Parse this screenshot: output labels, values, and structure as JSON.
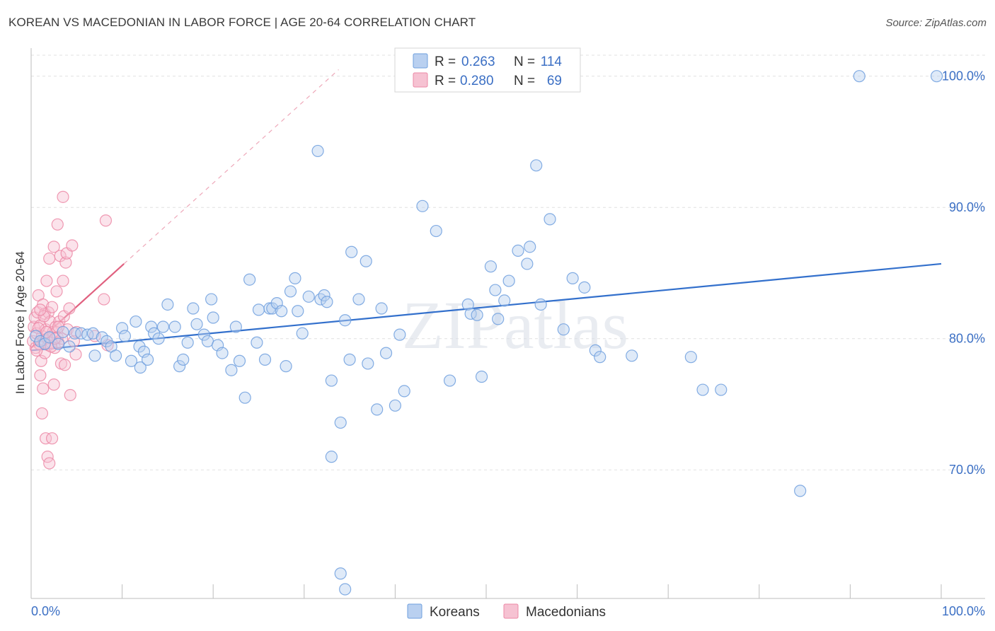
{
  "title": "KOREAN VS MACEDONIAN IN LABOR FORCE | AGE 20-64 CORRELATION CHART",
  "source": "Source: ZipAtlas.com",
  "watermark": "ZIPatlas",
  "colors": {
    "koreans": "#6f9fde",
    "koreans_fill": "#b9d0f0",
    "koreans_line": "#3370cc",
    "macedonians": "#ec88a6",
    "macedonians_fill": "#f6c2d2",
    "macedonians_line": "#e0607f",
    "axis_text": "#3b6fc4"
  },
  "legend": {
    "rows": [
      {
        "r_label": "R = ",
        "r_value": "0.263",
        "n_label": "N = ",
        "n_value": "114"
      },
      {
        "r_label": "R = ",
        "r_value": "0.280",
        "n_label": "N = ",
        "n_value": "69"
      }
    ]
  },
  "bottom_legend": [
    "Koreans",
    "Macedonians"
  ],
  "chart_data": {
    "type": "scatter",
    "title": "KOREAN VS MACEDONIAN IN LABOR FORCE | AGE 20-64 CORRELATION CHART",
    "xlabel": "",
    "ylabel": "In Labor Force | Age 20-64",
    "xlim": [
      0,
      100
    ],
    "ylim": [
      60.2,
      101.6
    ],
    "x_tick_labels": [
      "0.0%",
      "100.0%"
    ],
    "y_ticks": [
      70,
      80,
      90,
      100
    ],
    "y_tick_labels": [
      "70.0%",
      "80.0%",
      "90.0%",
      "100.0%"
    ],
    "grid": true,
    "legend_position": "top-center",
    "series": [
      {
        "name": "Koreans",
        "r": 0.263,
        "n": 114,
        "trend": {
          "x": [
            0,
            100
          ],
          "y": [
            79.1,
            85.7
          ]
        },
        "points": [
          [
            0.5,
            80.2
          ],
          [
            1.0,
            79.8
          ],
          [
            1.5,
            79.6
          ],
          [
            2.0,
            80.1
          ],
          [
            3.0,
            79.6
          ],
          [
            3.5,
            80.5
          ],
          [
            4.2,
            79.4
          ],
          [
            4.8,
            80.4
          ],
          [
            5.5,
            80.4
          ],
          [
            6.2,
            80.3
          ],
          [
            6.8,
            80.4
          ],
          [
            7.0,
            78.7
          ],
          [
            7.8,
            80.1
          ],
          [
            8.3,
            79.8
          ],
          [
            8.8,
            79.4
          ],
          [
            9.3,
            78.7
          ],
          [
            10.0,
            80.8
          ],
          [
            10.3,
            80.2
          ],
          [
            11.0,
            78.3
          ],
          [
            11.5,
            81.3
          ],
          [
            11.9,
            79.4
          ],
          [
            12.0,
            77.8
          ],
          [
            12.4,
            79.0
          ],
          [
            12.8,
            78.4
          ],
          [
            13.2,
            80.9
          ],
          [
            13.5,
            80.4
          ],
          [
            14.0,
            80.0
          ],
          [
            14.5,
            80.9
          ],
          [
            15.0,
            82.6
          ],
          [
            15.8,
            80.9
          ],
          [
            16.3,
            77.9
          ],
          [
            16.7,
            78.4
          ],
          [
            17.2,
            79.7
          ],
          [
            17.8,
            82.3
          ],
          [
            18.2,
            81.1
          ],
          [
            19.0,
            80.3
          ],
          [
            19.4,
            79.8
          ],
          [
            19.8,
            83.0
          ],
          [
            20.0,
            81.6
          ],
          [
            20.5,
            79.5
          ],
          [
            21.0,
            78.9
          ],
          [
            22.0,
            77.6
          ],
          [
            22.5,
            80.9
          ],
          [
            22.9,
            78.3
          ],
          [
            23.5,
            75.5
          ],
          [
            24.0,
            84.5
          ],
          [
            24.8,
            79.7
          ],
          [
            25.0,
            82.2
          ],
          [
            25.7,
            78.4
          ],
          [
            26.2,
            82.3
          ],
          [
            26.5,
            82.3
          ],
          [
            27.0,
            82.7
          ],
          [
            27.5,
            82.1
          ],
          [
            28.0,
            77.9
          ],
          [
            28.5,
            83.6
          ],
          [
            29.0,
            84.6
          ],
          [
            29.3,
            82.1
          ],
          [
            29.8,
            80.4
          ],
          [
            30.5,
            83.2
          ],
          [
            31.5,
            94.3
          ],
          [
            31.8,
            83.0
          ],
          [
            32.2,
            83.3
          ],
          [
            32.5,
            82.8
          ],
          [
            33.0,
            76.8
          ],
          [
            34.0,
            73.6
          ],
          [
            34.5,
            81.4
          ],
          [
            35.0,
            78.4
          ],
          [
            35.2,
            86.6
          ],
          [
            36.0,
            83.0
          ],
          [
            36.8,
            85.9
          ],
          [
            37.0,
            78.1
          ],
          [
            38.0,
            74.6
          ],
          [
            38.5,
            82.3
          ],
          [
            39.0,
            78.9
          ],
          [
            40.0,
            74.9
          ],
          [
            40.5,
            80.3
          ],
          [
            41.0,
            76.0
          ],
          [
            43.0,
            90.1
          ],
          [
            44.5,
            88.2
          ],
          [
            46.0,
            76.8
          ],
          [
            48.0,
            82.6
          ],
          [
            48.3,
            81.9
          ],
          [
            49.0,
            81.8
          ],
          [
            49.5,
            77.1
          ],
          [
            50.5,
            85.5
          ],
          [
            51.0,
            83.7
          ],
          [
            51.3,
            81.5
          ],
          [
            52.0,
            82.9
          ],
          [
            52.5,
            84.4
          ],
          [
            53.5,
            86.7
          ],
          [
            54.5,
            85.7
          ],
          [
            54.8,
            87.0
          ],
          [
            55.5,
            93.2
          ],
          [
            56.0,
            82.6
          ],
          [
            57.0,
            89.1
          ],
          [
            58.5,
            80.7
          ],
          [
            59.5,
            84.6
          ],
          [
            60.8,
            83.9
          ],
          [
            62.0,
            79.1
          ],
          [
            62.5,
            78.6
          ],
          [
            66.0,
            78.7
          ],
          [
            72.5,
            78.6
          ],
          [
            73.8,
            76.1
          ],
          [
            75.8,
            76.1
          ],
          [
            84.5,
            68.4
          ],
          [
            91.0,
            100.0
          ],
          [
            99.5,
            100.0
          ],
          [
            34.0,
            62.1
          ],
          [
            34.5,
            60.9
          ],
          [
            33.0,
            71.0
          ]
        ]
      },
      {
        "name": "Macedonians",
        "r": 0.28,
        "n": 69,
        "trend": {
          "x": [
            0,
            10.2
          ],
          "y": [
            79.3,
            85.7
          ]
        },
        "points": [
          [
            0.2,
            79.8
          ],
          [
            0.3,
            80.9
          ],
          [
            0.4,
            81.6
          ],
          [
            0.5,
            79.3
          ],
          [
            0.6,
            80.4
          ],
          [
            0.7,
            82.0
          ],
          [
            0.8,
            83.3
          ],
          [
            0.9,
            79.6
          ],
          [
            1.0,
            81.0
          ],
          [
            1.0,
            77.2
          ],
          [
            1.1,
            78.3
          ],
          [
            1.2,
            80.2
          ],
          [
            1.2,
            74.3
          ],
          [
            1.3,
            82.6
          ],
          [
            1.3,
            76.2
          ],
          [
            1.4,
            79.9
          ],
          [
            1.5,
            81.9
          ],
          [
            1.5,
            78.9
          ],
          [
            1.6,
            80.7
          ],
          [
            1.6,
            72.4
          ],
          [
            1.7,
            84.4
          ],
          [
            1.8,
            80.0
          ],
          [
            1.8,
            71.0
          ],
          [
            1.9,
            82.0
          ],
          [
            1.9,
            79.5
          ],
          [
            2.0,
            86.1
          ],
          [
            2.0,
            70.5
          ],
          [
            2.1,
            81.3
          ],
          [
            2.2,
            79.7
          ],
          [
            2.3,
            82.4
          ],
          [
            2.3,
            72.4
          ],
          [
            2.4,
            80.5
          ],
          [
            2.5,
            87.0
          ],
          [
            2.5,
            76.5
          ],
          [
            2.6,
            79.3
          ],
          [
            2.7,
            80.9
          ],
          [
            2.8,
            83.6
          ],
          [
            2.9,
            80.1
          ],
          [
            2.9,
            88.7
          ],
          [
            3.0,
            79.7
          ],
          [
            3.1,
            81.3
          ],
          [
            3.2,
            86.3
          ],
          [
            3.3,
            78.1
          ],
          [
            3.4,
            80.0
          ],
          [
            3.5,
            90.8
          ],
          [
            3.5,
            84.4
          ],
          [
            3.6,
            81.7
          ],
          [
            3.7,
            78.0
          ],
          [
            3.8,
            85.8
          ],
          [
            3.9,
            86.5
          ],
          [
            4.0,
            80.7
          ],
          [
            4.2,
            82.3
          ],
          [
            4.3,
            75.7
          ],
          [
            4.5,
            87.1
          ],
          [
            4.7,
            79.8
          ],
          [
            4.9,
            78.8
          ],
          [
            5.0,
            80.5
          ],
          [
            7.0,
            80.2
          ],
          [
            8.0,
            83.0
          ],
          [
            8.2,
            89.0
          ],
          [
            8.4,
            79.5
          ],
          [
            0.8,
            80.8
          ],
          [
            1.4,
            81.7
          ],
          [
            2.2,
            79.4
          ],
          [
            3.0,
            80.9
          ],
          [
            0.6,
            79.1
          ],
          [
            1.0,
            82.2
          ],
          [
            1.7,
            80.5
          ],
          [
            2.6,
            80.0
          ]
        ]
      }
    ]
  }
}
